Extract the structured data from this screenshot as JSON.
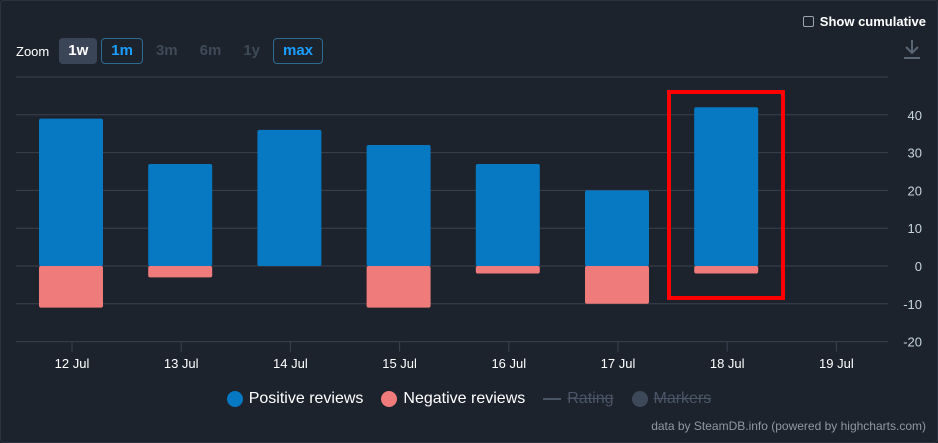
{
  "controls": {
    "cumulative_label": "Show cumulative",
    "zoom_label": "Zoom",
    "zoom_buttons": [
      "1w",
      "1m",
      "3m",
      "6m",
      "1y",
      "max"
    ]
  },
  "legend": {
    "positive": "Positive reviews",
    "negative": "Negative reviews",
    "rating": "Rating",
    "markers": "Markers"
  },
  "credits": "data by SteamDB.info (powered by highcharts.com)",
  "colors": {
    "positive": "#0679c2",
    "negative": "#ef7b7b",
    "grid": "#3a4350",
    "highlight": "#ff0000"
  },
  "chart_data": {
    "type": "bar",
    "categories": [
      "12 Jul",
      "13 Jul",
      "14 Jul",
      "15 Jul",
      "16 Jul",
      "17 Jul",
      "18 Jul",
      "19 Jul"
    ],
    "series": [
      {
        "name": "Positive reviews",
        "values": [
          39,
          27,
          36,
          32,
          27,
          20,
          42,
          null
        ]
      },
      {
        "name": "Negative reviews",
        "values": [
          -11,
          -3,
          0,
          -11,
          -2,
          -10,
          -2,
          null
        ]
      }
    ],
    "y_ticks": [
      40,
      30,
      20,
      10,
      0,
      -10,
      -20
    ],
    "ylim": [
      -20,
      40
    ],
    "legend_position": "bottom-center",
    "grid": true
  }
}
